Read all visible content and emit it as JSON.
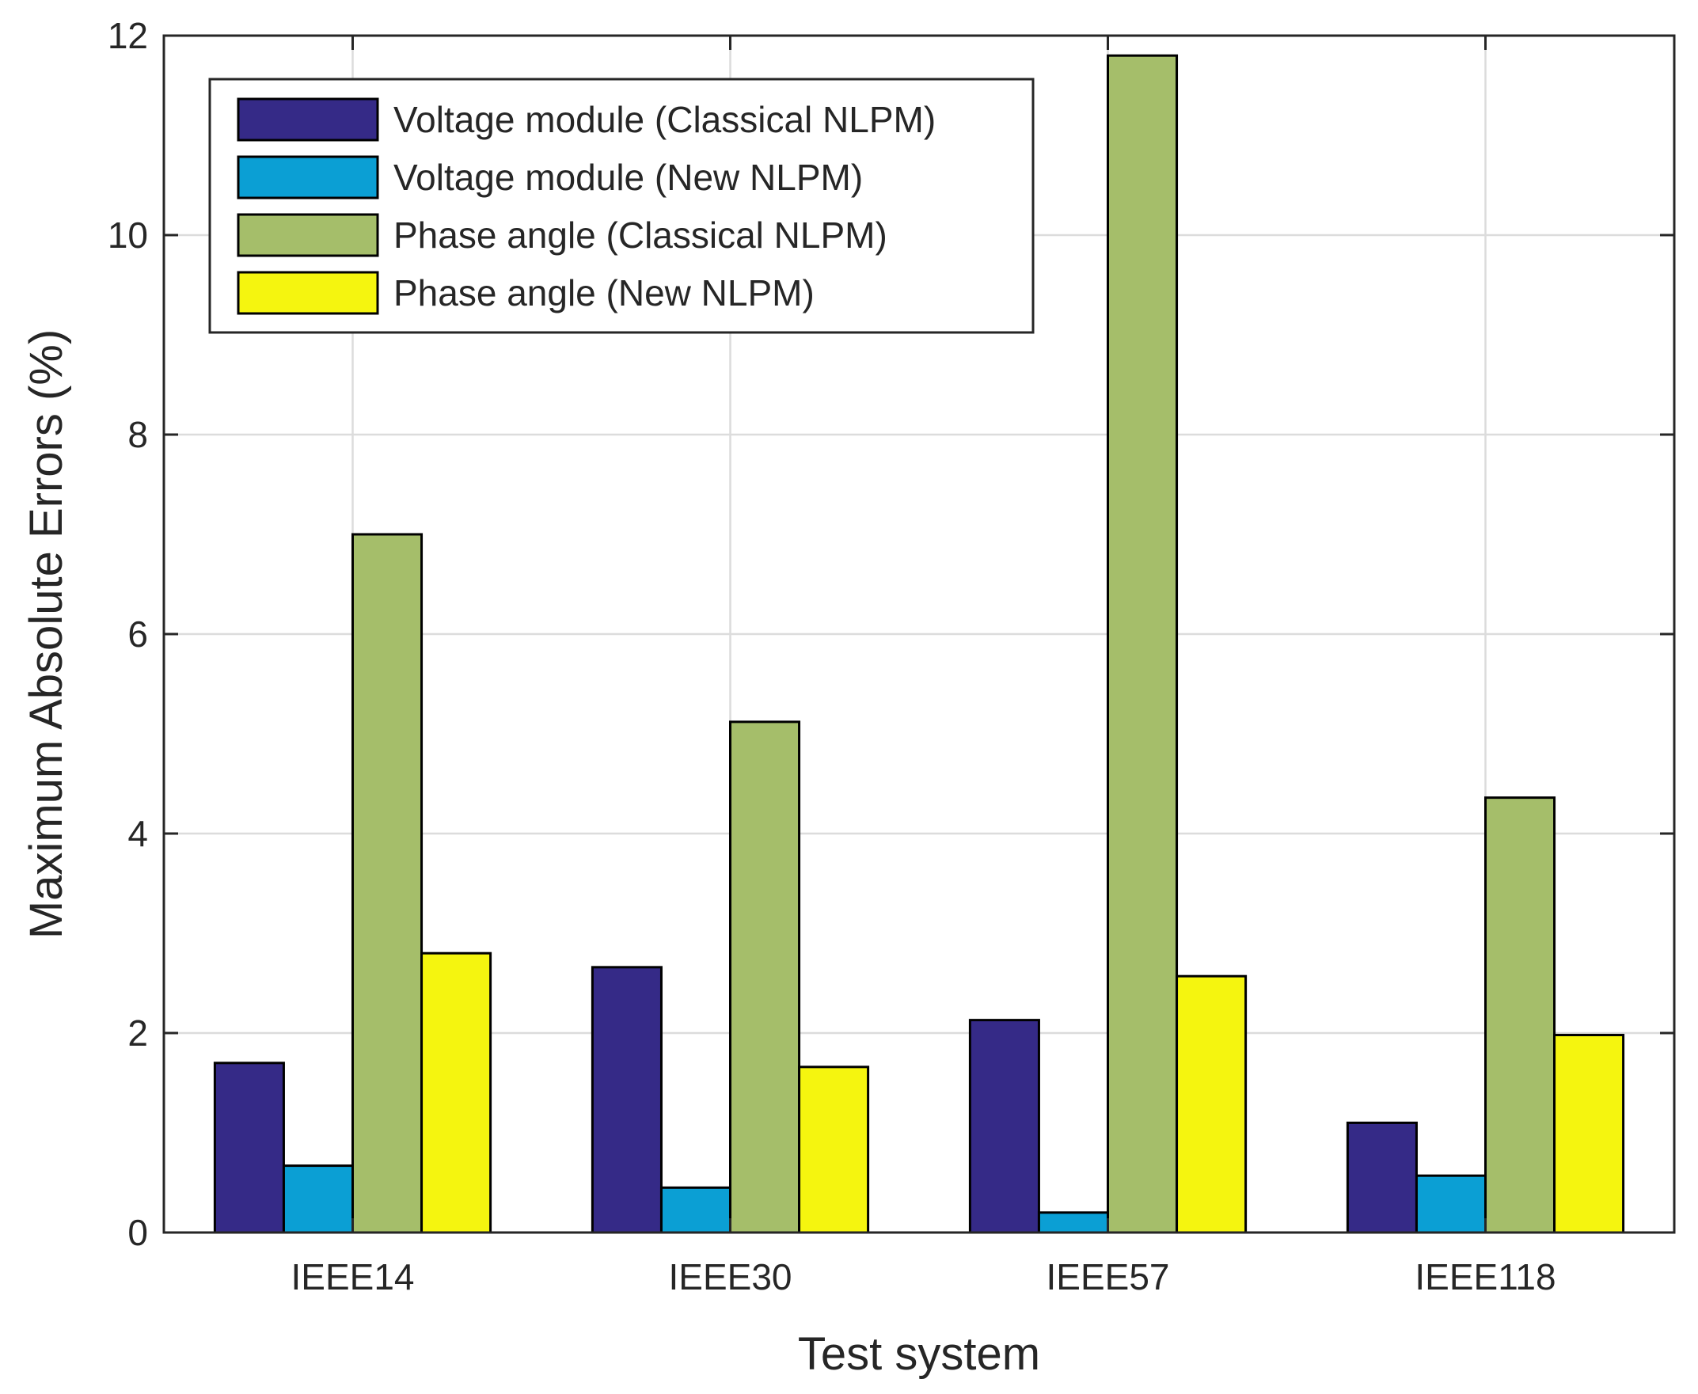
{
  "chart_data": {
    "type": "bar",
    "title": "",
    "xlabel": "Test system",
    "ylabel": "Maximum Absolute Errors (%)",
    "categories": [
      "IEEE14",
      "IEEE30",
      "IEEE57",
      "IEEE118"
    ],
    "ylim": [
      0,
      12
    ],
    "yticks": [
      "0",
      "2",
      "4",
      "6",
      "8",
      "10",
      "12"
    ],
    "grid": true,
    "legend_position": "top-left",
    "series": [
      {
        "name": "Voltage module (Classical NLPM)",
        "color": "#352a87",
        "values": [
          1.7,
          2.66,
          2.13,
          1.1
        ]
      },
      {
        "name": "Voltage module (New NLPM)",
        "color": "#0b9fd4",
        "values": [
          0.67,
          0.45,
          0.2,
          0.57
        ]
      },
      {
        "name": "Phase angle (Classical NLPM)",
        "color": "#a5be6a",
        "values": [
          7.0,
          5.12,
          11.8,
          4.36
        ]
      },
      {
        "name": "Phase angle (New NLPM)",
        "color": "#f5f50f",
        "values": [
          2.8,
          1.66,
          2.57,
          1.98
        ]
      }
    ]
  }
}
